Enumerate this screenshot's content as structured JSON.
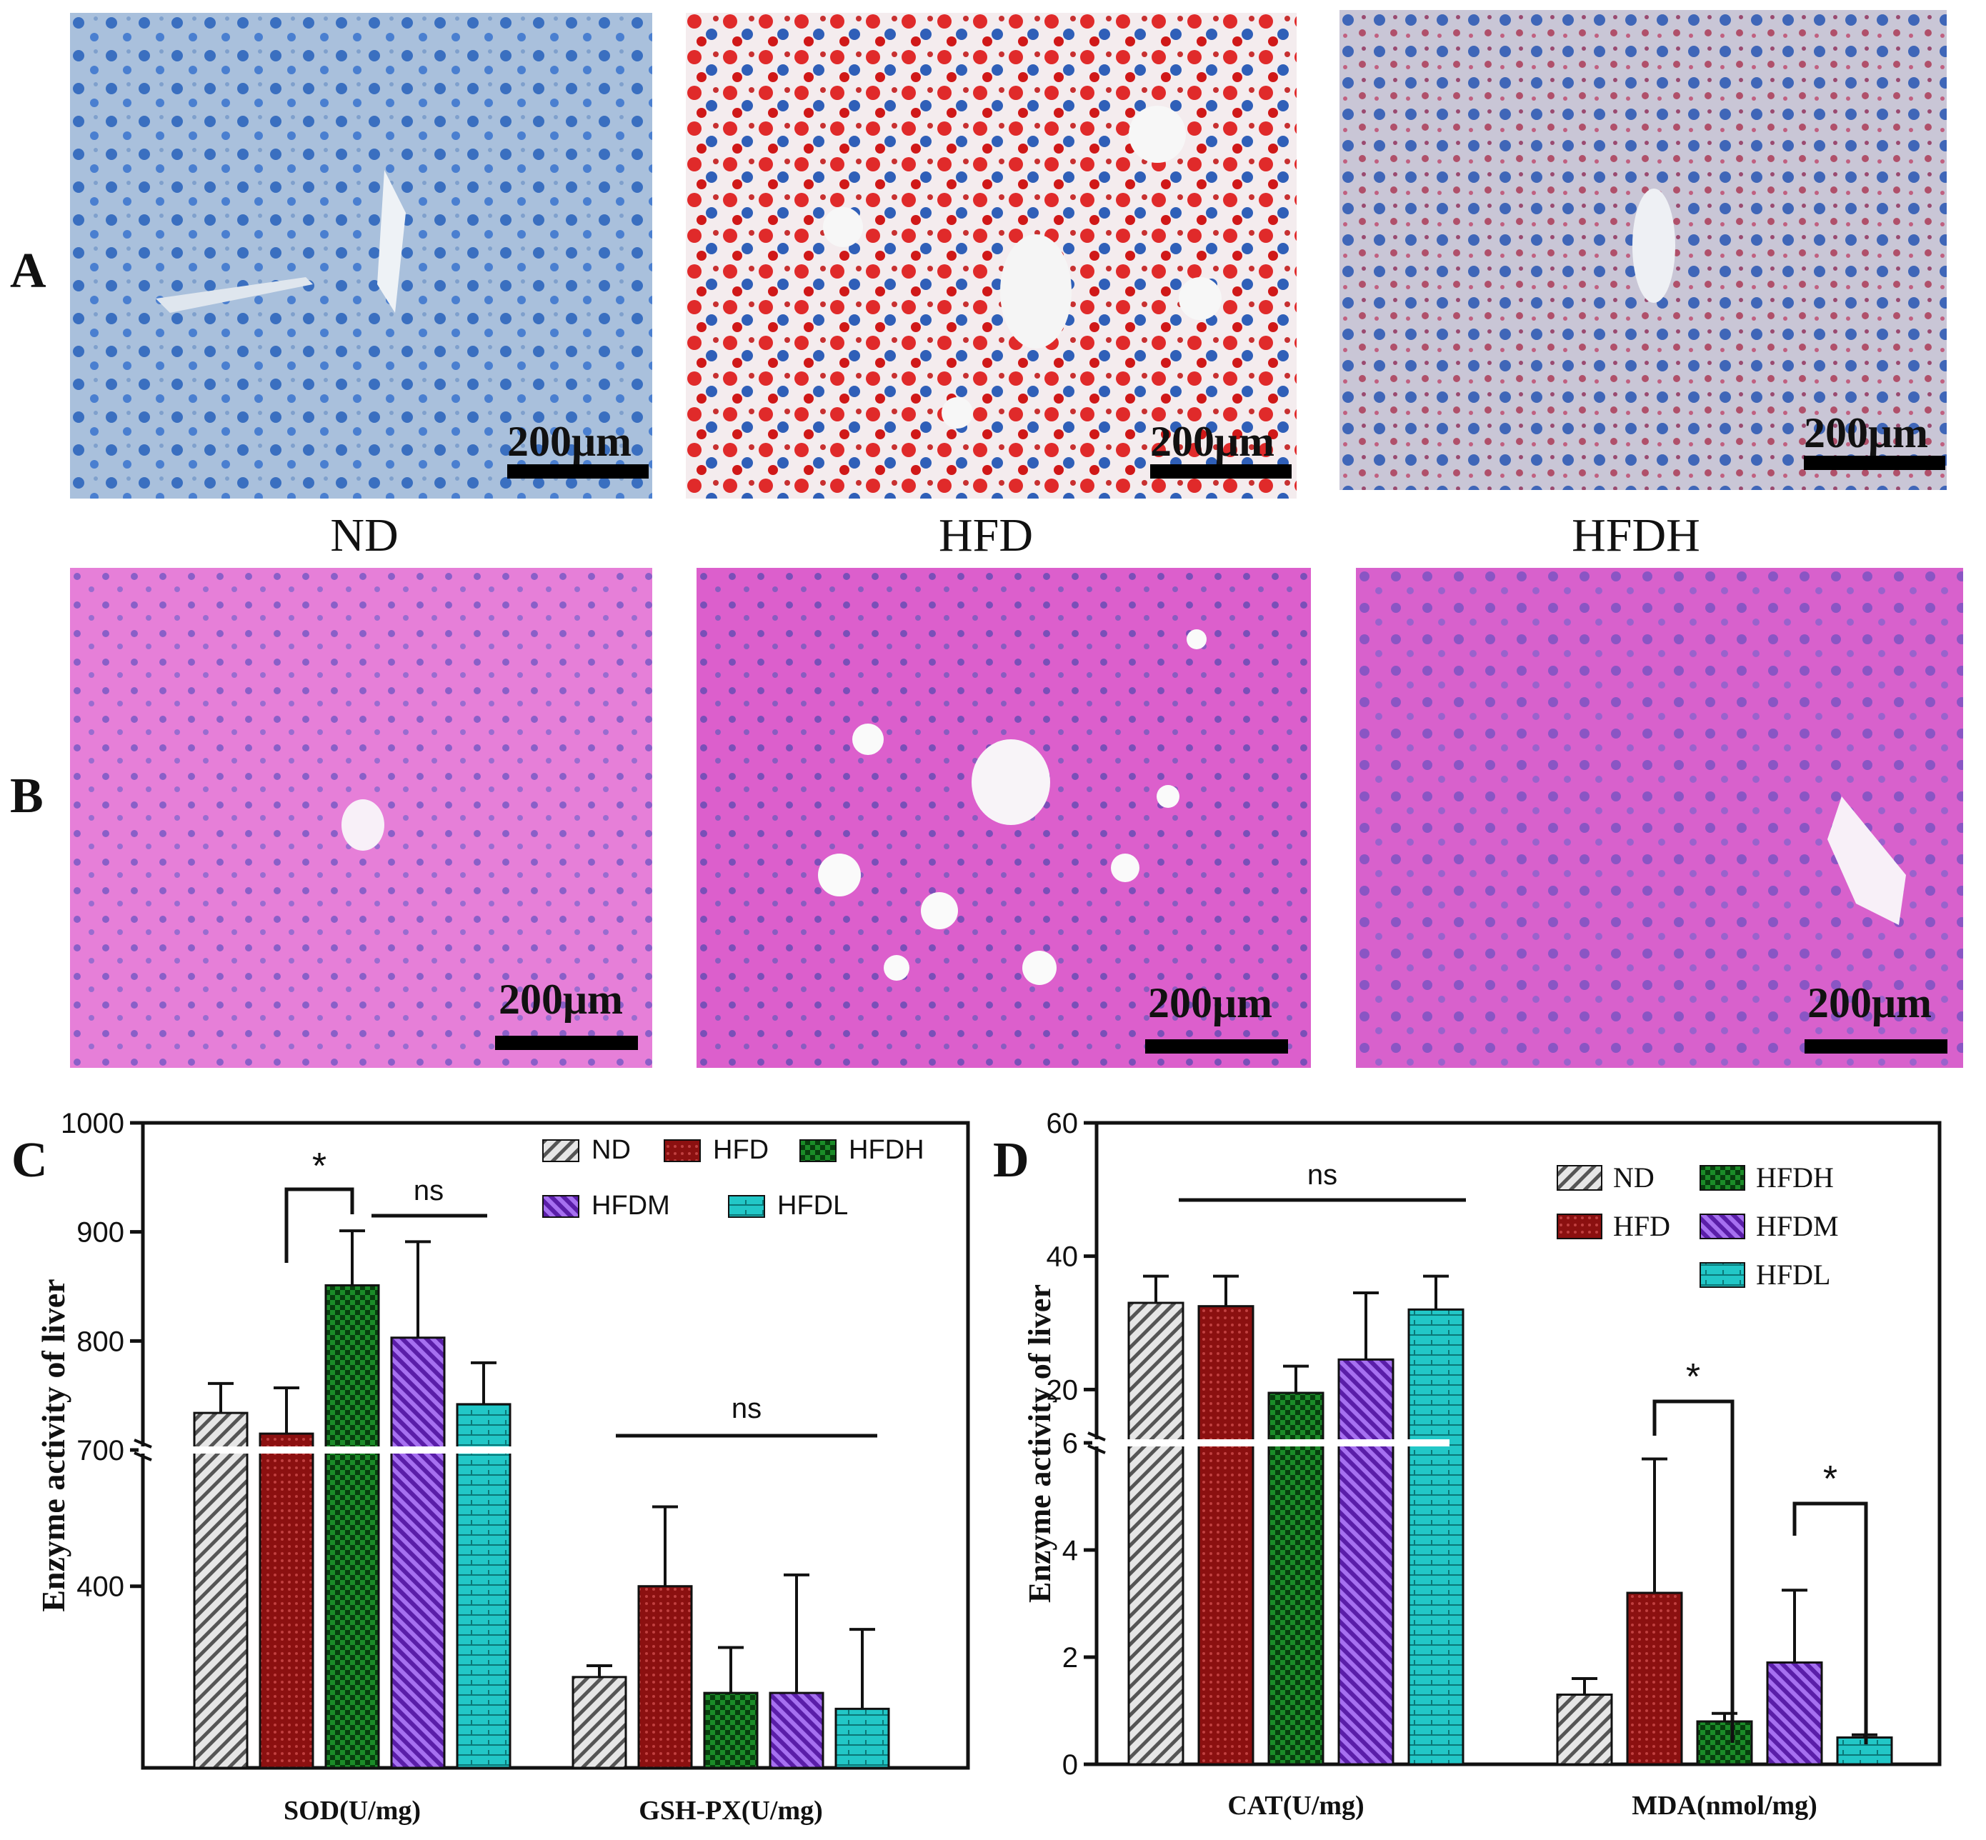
{
  "panels": {
    "a_label": "A",
    "b_label": "B",
    "c_label": "C",
    "d_label": "D",
    "group_labels": [
      "ND",
      "HFD",
      "HFDH"
    ],
    "scale_bar": "200μm"
  },
  "colors": {
    "ND": "#d8d8d8",
    "HFD": "#8b1010",
    "HFDH": "#0a6a14",
    "HFDM": "#7a2bd0",
    "HFDL": "#22c7c7",
    "oil_red_bg": "#a9c0dc",
    "he_bg": "#e070d0"
  },
  "chart_data": [
    {
      "panel": "C",
      "type": "bar",
      "ylabel": "Enzyme activity of liver",
      "axis_break": true,
      "upper_segment": {
        "ylim": [
          700,
          1000
        ],
        "ticks": [
          700,
          800,
          900,
          1000
        ]
      },
      "lower_segment": {
        "tick": [
          400
        ]
      },
      "categories": [
        "SOD(U/mg)",
        "GSH-PX(U/mg)"
      ],
      "legend": [
        "ND",
        "HFD",
        "HFDH",
        "HFDM",
        "HFDL"
      ],
      "series": [
        {
          "name": "ND",
          "values": [
            734,
            200
          ],
          "errors": [
            27,
            25
          ]
        },
        {
          "name": "HFD",
          "values": [
            715,
            400
          ],
          "errors": [
            42,
            175
          ]
        },
        {
          "name": "HFDH",
          "values": [
            851,
            165
          ],
          "errors": [
            50,
            100
          ]
        },
        {
          "name": "HFDM",
          "values": [
            803,
            165
          ],
          "errors": [
            88,
            260
          ]
        },
        {
          "name": "HFDL",
          "values": [
            742,
            130
          ],
          "errors": [
            38,
            175
          ]
        }
      ],
      "annotations": [
        "*",
        "ns",
        "ns"
      ]
    },
    {
      "panel": "D",
      "type": "bar",
      "ylabel": "Enzyme activity of liver",
      "axis_break": true,
      "upper_segment": {
        "ticks": [
          20,
          40,
          60
        ]
      },
      "lower_segment": {
        "ylim": [
          0,
          6
        ],
        "ticks": [
          0,
          2,
          4,
          6
        ]
      },
      "categories": [
        "CAT(U/mg)",
        "MDA(nmol/mg)"
      ],
      "legend": [
        "ND",
        "HFD",
        "HFDH",
        "HFDM",
        "HFDL"
      ],
      "series": [
        {
          "name": "ND",
          "values": [
            33,
            1.3
          ],
          "errors": [
            4,
            0.3
          ]
        },
        {
          "name": "HFD",
          "values": [
            32.5,
            3.2
          ],
          "errors": [
            4.5,
            2.5
          ]
        },
        {
          "name": "HFDH",
          "values": [
            19.5,
            0.8
          ],
          "errors": [
            4,
            0.15
          ]
        },
        {
          "name": "HFDM",
          "values": [
            24.5,
            1.9
          ],
          "errors": [
            10,
            1.35
          ]
        },
        {
          "name": "HFDL",
          "values": [
            32,
            0.5
          ],
          "errors": [
            5,
            0.05
          ]
        }
      ],
      "annotations": [
        "ns",
        "*",
        "*"
      ]
    }
  ]
}
